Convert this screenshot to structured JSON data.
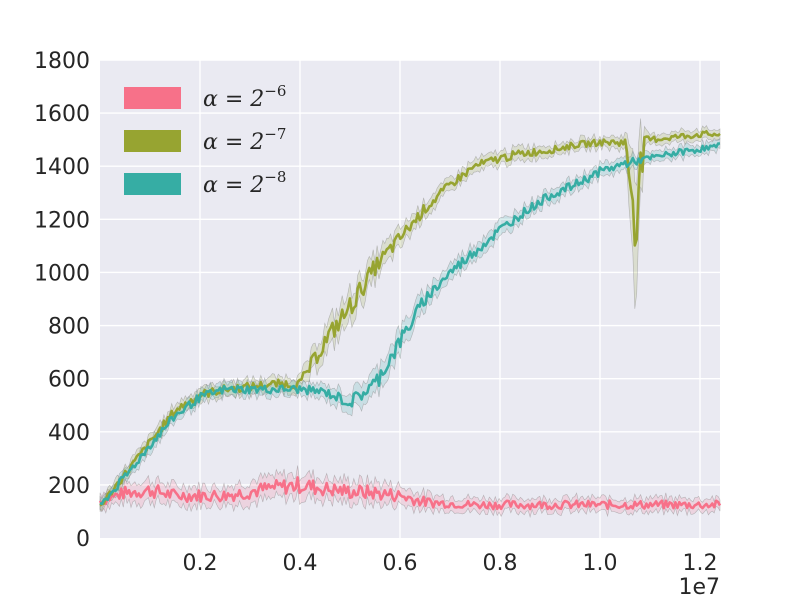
{
  "chart_data": {
    "type": "line",
    "title": "",
    "xlabel": "",
    "ylabel": "",
    "x_offset_label": "1e7",
    "xlim": [
      0,
      12400000
    ],
    "ylim": [
      0,
      1800
    ],
    "x_ticks": [
      2000000,
      4000000,
      6000000,
      8000000,
      10000000,
      12000000
    ],
    "x_tick_labels": [
      "0.2",
      "0.4",
      "0.6",
      "0.8",
      "1.0",
      "1.2"
    ],
    "y_ticks": [
      0,
      200,
      400,
      600,
      800,
      1000,
      1200,
      1400,
      1600,
      1800
    ],
    "y_tick_labels": [
      "0",
      "200",
      "400",
      "600",
      "800",
      "1000",
      "1200",
      "1400",
      "1600",
      "1800"
    ],
    "grid": true,
    "legend_position": "top-left",
    "background_color": "#EAEAF2",
    "series": [
      {
        "name": "α = 2^-6",
        "legend_base": "α = 2",
        "legend_exp": "−6",
        "color": "#F77189",
        "x": [
          0,
          500000,
          1000000,
          1500000,
          2000000,
          2500000,
          3000000,
          3500000,
          4000000,
          4500000,
          5000000,
          5500000,
          6000000,
          6500000,
          7000000,
          7500000,
          8000000,
          8500000,
          9000000,
          9500000,
          10000000,
          10500000,
          11000000,
          11500000,
          12000000,
          12400000
        ],
        "values": [
          140,
          170,
          180,
          160,
          160,
          160,
          175,
          190,
          200,
          185,
          175,
          170,
          160,
          135,
          130,
          125,
          125,
          125,
          125,
          125,
          125,
          125,
          125,
          125,
          125,
          125
        ],
        "band": [
          25,
          30,
          35,
          30,
          30,
          30,
          35,
          35,
          40,
          35,
          35,
          35,
          30,
          25,
          20,
          20,
          20,
          20,
          20,
          20,
          20,
          20,
          20,
          20,
          20,
          20
        ]
      },
      {
        "name": "α = 2^-7",
        "legend_base": "α = 2",
        "legend_exp": "−7",
        "color": "#97A431",
        "x": [
          0,
          500000,
          1000000,
          1500000,
          2000000,
          2500000,
          3000000,
          3500000,
          4000000,
          4500000,
          5000000,
          5500000,
          6000000,
          6500000,
          7000000,
          7500000,
          8000000,
          8500000,
          9000000,
          9500000,
          10000000,
          10500000,
          10700000,
          10900000,
          11000000,
          11500000,
          12000000,
          12400000
        ],
        "values": [
          120,
          240,
          360,
          480,
          540,
          560,
          570,
          580,
          580,
          740,
          870,
          1020,
          1130,
          1240,
          1330,
          1400,
          1430,
          1450,
          1460,
          1480,
          1490,
          1490,
          1240,
          1495,
          1500,
          1510,
          1520,
          1520
        ],
        "band": [
          15,
          20,
          20,
          20,
          20,
          20,
          20,
          20,
          25,
          45,
          50,
          40,
          30,
          25,
          20,
          20,
          20,
          20,
          15,
          15,
          15,
          20,
          240,
          25,
          15,
          15,
          15,
          15
        ]
      },
      {
        "name": "α = 2^-8",
        "legend_base": "α = 2",
        "legend_exp": "−8",
        "color": "#36ADA4",
        "x": [
          0,
          500000,
          1000000,
          1500000,
          2000000,
          2500000,
          3000000,
          3500000,
          4000000,
          4500000,
          5000000,
          5500000,
          6000000,
          6500000,
          7000000,
          7500000,
          8000000,
          8500000,
          9000000,
          9500000,
          10000000,
          10500000,
          11000000,
          11500000,
          12000000,
          12400000
        ],
        "values": [
          120,
          230,
          350,
          460,
          530,
          560,
          560,
          560,
          560,
          550,
          510,
          580,
          740,
          900,
          1000,
          1080,
          1160,
          1230,
          1290,
          1330,
          1380,
          1410,
          1430,
          1450,
          1465,
          1475
        ],
        "band": [
          15,
          20,
          20,
          20,
          20,
          20,
          20,
          20,
          20,
          20,
          30,
          40,
          40,
          30,
          25,
          25,
          25,
          20,
          20,
          20,
          20,
          20,
          15,
          15,
          15,
          15
        ]
      }
    ]
  }
}
